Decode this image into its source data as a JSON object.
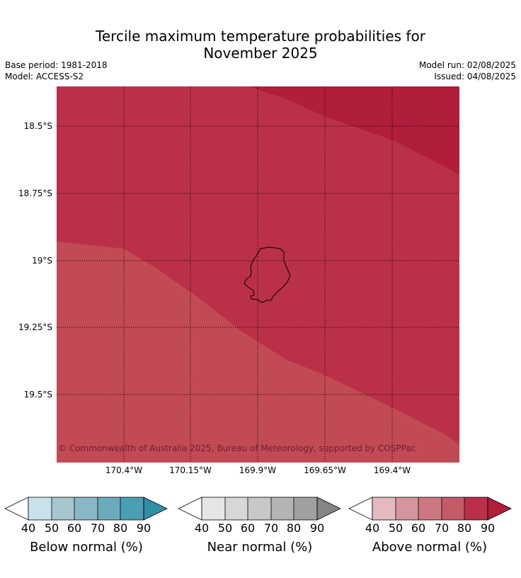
{
  "title_line1": "Tercile maximum temperature probabilities for",
  "title_line2": "November 2025",
  "meta": {
    "base_period": "Base period: 1981-2018",
    "model": "Model: ACCESS-S2",
    "model_run": "Model run: 02/08/2025",
    "issued": "Issued: 04/08/2025"
  },
  "map": {
    "region": "Niue",
    "lat_labels": [
      "18.5°S",
      "18.75°S",
      "19°S",
      "19.25°S",
      "19.5°S"
    ],
    "lon_labels": [
      "170.4°W",
      "170.15°W",
      "169.9°W",
      "169.65°W",
      "169.4°W"
    ],
    "credit": "© Commonwealth of Australia 2025, Bureau of Meteorology, supported by COSPPac",
    "shading": {
      "above_90": "#b01e3c",
      "above_80_90": "#bb3049",
      "above_70_80": "#c24a55"
    },
    "gridlines": true,
    "gridline_style": "dotted"
  },
  "colorbars": [
    {
      "label": "Below normal (%)",
      "ticks": [
        "40",
        "50",
        "60",
        "70",
        "80",
        "90"
      ],
      "colors": [
        "#ffffff",
        "#c9e2e9",
        "#a7c7cd",
        "#8ab7c5",
        "#6aacbb",
        "#4a9fb3",
        "#2f8fa5"
      ]
    },
    {
      "label": "Near normal (%)",
      "ticks": [
        "40",
        "50",
        "60",
        "70",
        "80",
        "90"
      ],
      "colors": [
        "#ffffff",
        "#e6e6e6",
        "#d7d7d7",
        "#c8c8c8",
        "#b4b4b4",
        "#a0a0a0",
        "#858585"
      ]
    },
    {
      "label": "Above normal (%)",
      "ticks": [
        "40",
        "50",
        "60",
        "70",
        "80",
        "90"
      ],
      "colors": [
        "#ffffff",
        "#e4b9bf",
        "#d6959d",
        "#cd7880",
        "#c45b66",
        "#bb3049",
        "#b01e3c"
      ]
    }
  ]
}
